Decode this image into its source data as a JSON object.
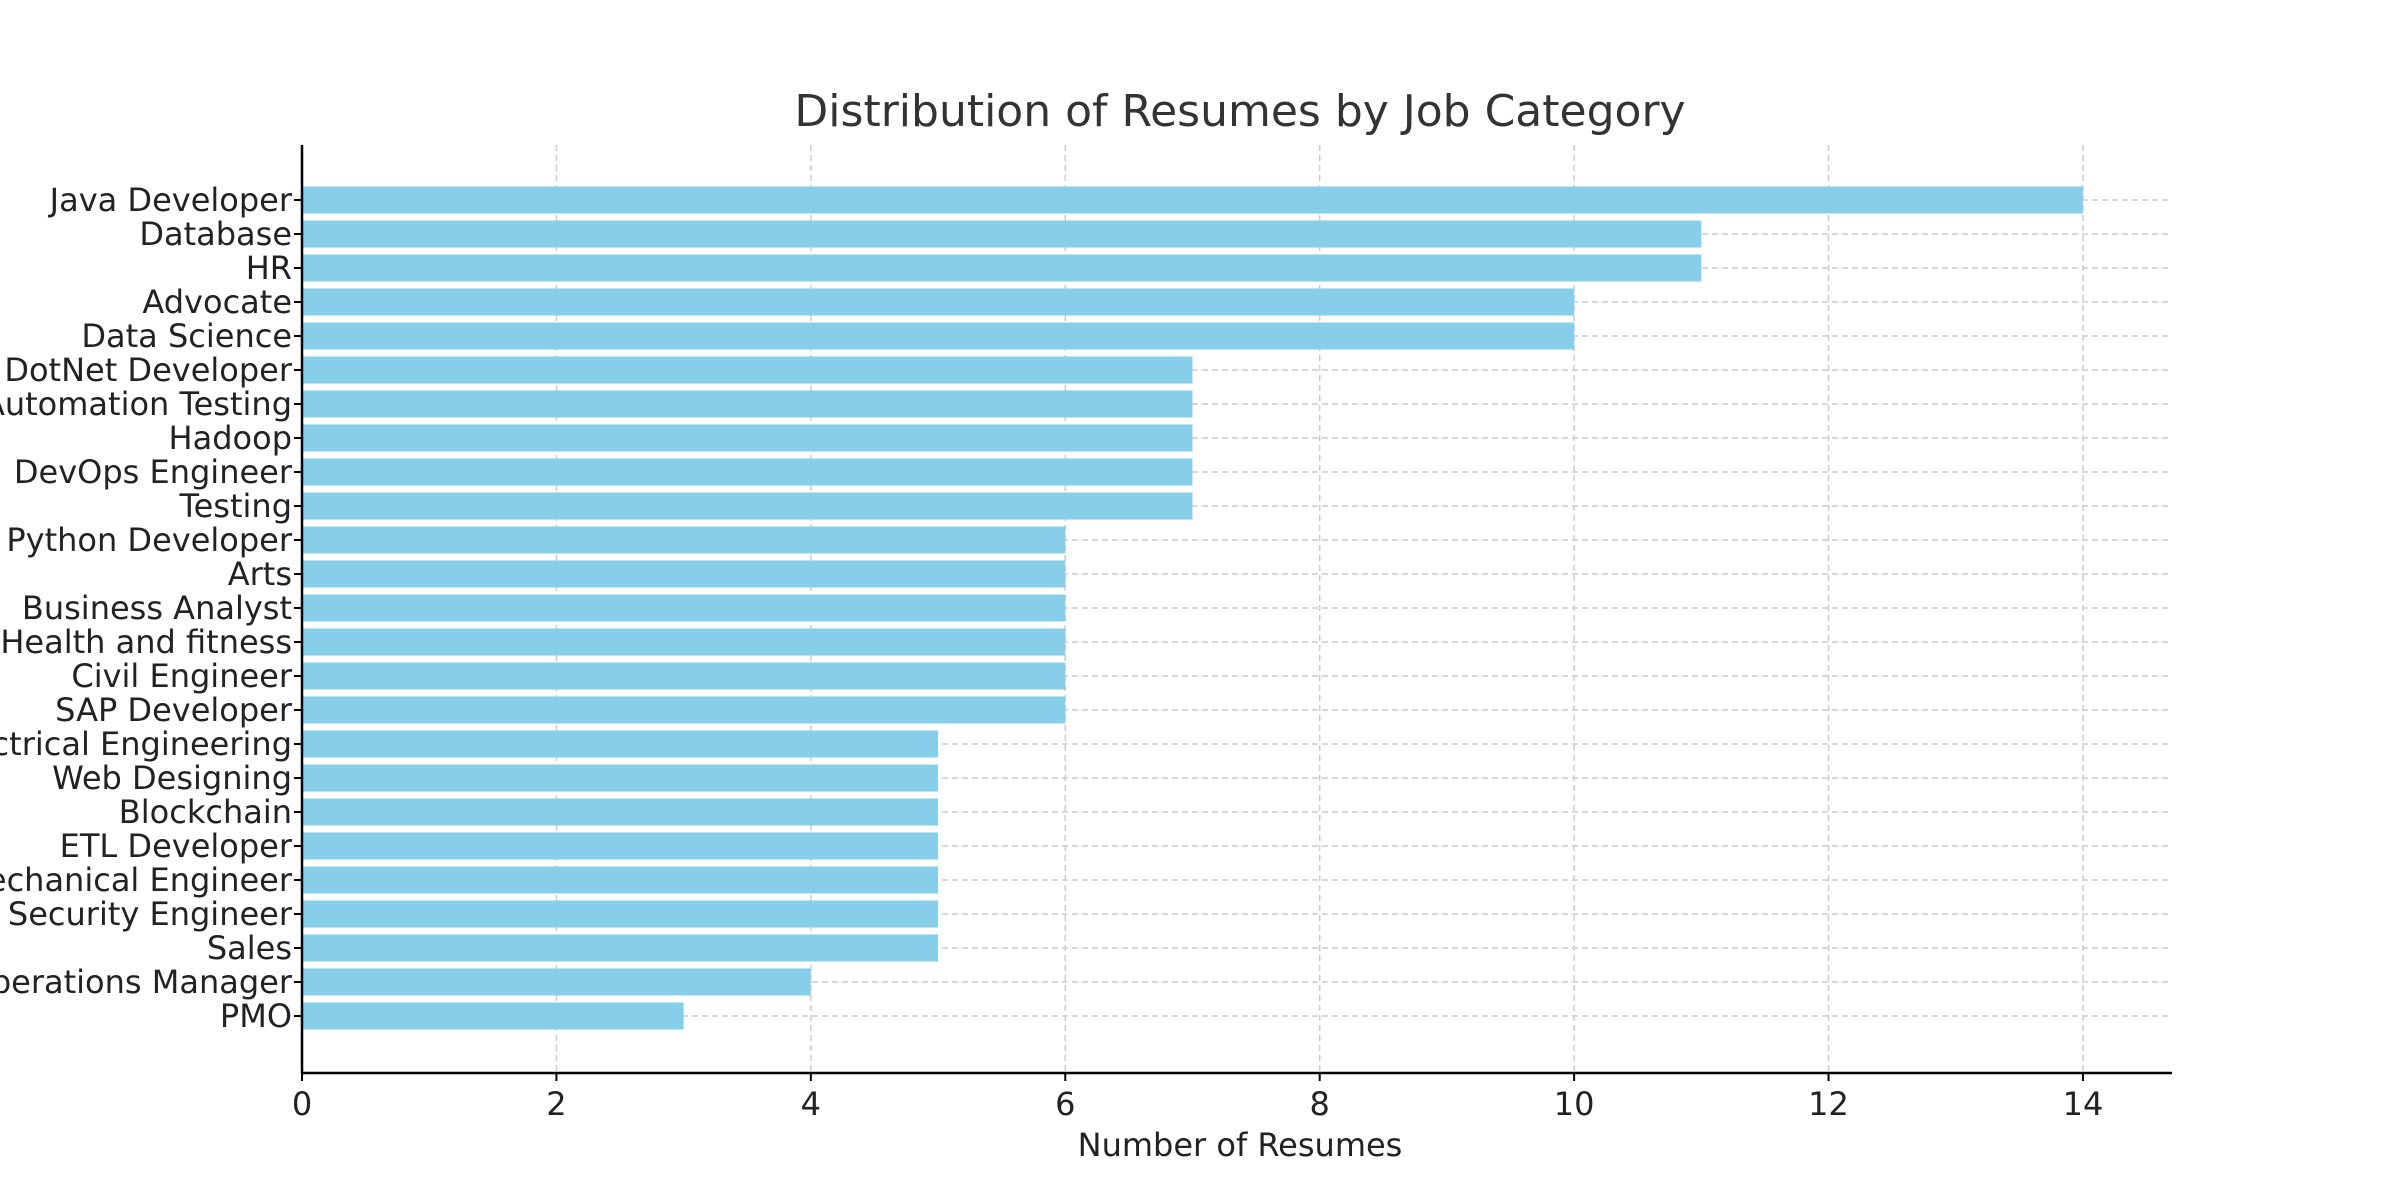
{
  "chart_data": {
    "type": "bar",
    "orientation": "horizontal",
    "title": "Distribution of Resumes by Job Category",
    "xlabel": "Number of Resumes",
    "ylabel": "",
    "xlim": [
      0,
      14.7
    ],
    "xticks": [
      0,
      2,
      4,
      6,
      8,
      10,
      12,
      14
    ],
    "grid": true,
    "bar_color": "#87CEEB",
    "categories": [
      "Java Developer",
      "Database",
      "HR",
      "Advocate",
      "Data Science",
      "DotNet Developer",
      "Automation Testing",
      "Hadoop",
      "DevOps Engineer",
      "Testing",
      "Python Developer",
      "Arts",
      "Business Analyst",
      "Health and fitness",
      "Civil Engineer",
      "SAP Developer",
      "Electrical Engineering",
      "Web Designing",
      "Blockchain",
      "ETL Developer",
      "Mechanical Engineer",
      "Network Security Engineer",
      "Sales",
      "Operations Manager",
      "PMO"
    ],
    "values": [
      14,
      11,
      11,
      10,
      10,
      7,
      7,
      7,
      7,
      7,
      6,
      6,
      6,
      6,
      6,
      6,
      5,
      5,
      5,
      5,
      5,
      5,
      5,
      4,
      3
    ]
  }
}
